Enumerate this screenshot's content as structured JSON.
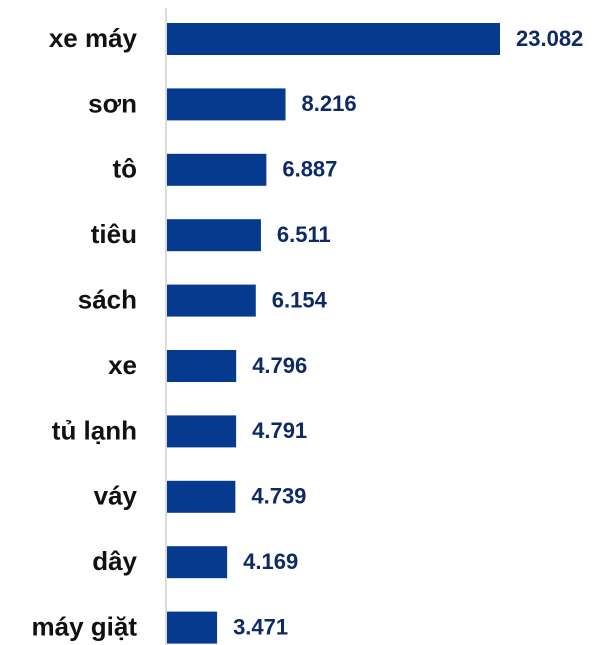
{
  "chart_data": {
    "type": "bar",
    "orientation": "horizontal",
    "categories": [
      "xe máy",
      "sơn",
      "tô",
      "tiêu",
      "sách",
      "xe",
      "tủ lạnh",
      "váy",
      "dây",
      "máy giặt"
    ],
    "values": [
      23082,
      8216,
      6887,
      6511,
      6154,
      4796,
      4791,
      4739,
      4169,
      3471
    ],
    "value_labels": [
      "23.082",
      "8.216",
      "6.887",
      "6.511",
      "6.154",
      "4.796",
      "4.791",
      "4.739",
      "4.169",
      "3.471"
    ],
    "color": "#063a8f"
  }
}
